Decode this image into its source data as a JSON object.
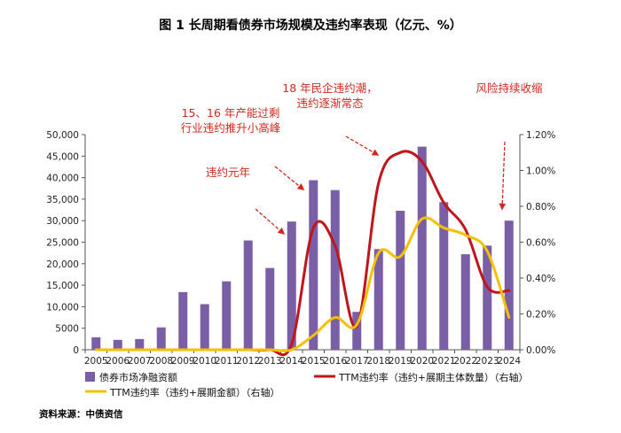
{
  "title": "图 1  长周期看债券市场规模及违约率表现（亿元、%）",
  "source": "资料来源：中债资信",
  "chart_data": {
    "type": "bar+line",
    "categories": [
      "2005",
      "2006",
      "2007",
      "2008",
      "2009",
      "2010",
      "2011",
      "2012",
      "2013",
      "2014",
      "2015",
      "2016",
      "2017",
      "2018",
      "2019",
      "2020",
      "2021",
      "2022",
      "2023",
      "2024"
    ],
    "left_axis": {
      "min": 0,
      "max": 50000,
      "step": 5000,
      "tick_labels": [
        "0",
        "5000",
        "10,000",
        "15,000",
        "20,000",
        "25,000",
        "30,000",
        "35,000",
        "40,000",
        "45,000",
        "50,000"
      ]
    },
    "right_axis": {
      "min": 0,
      "max": 1.2,
      "step": 0.2,
      "tick_labels": [
        "0.00%",
        "0.20%",
        "0.40%",
        "0.60%",
        "0.80%",
        "1.00%",
        "1.20%"
      ]
    },
    "series": [
      {
        "name": "债券市场净融资额",
        "type": "bar",
        "axis": "left",
        "color": "#7b5fa6",
        "values": [
          2900,
          2300,
          2500,
          5200,
          13400,
          10600,
          15900,
          25400,
          19000,
          29800,
          39400,
          37100,
          8800,
          23400,
          32300,
          47200,
          34300,
          22200,
          24200,
          30000
        ]
      },
      {
        "name": "TTM违约率（违约+展期主体数量）（右轴）",
        "type": "line",
        "axis": "right",
        "color": "#c0161b",
        "values": [
          0,
          0,
          0,
          0,
          0,
          0,
          0,
          0,
          0,
          0.03,
          0.68,
          0.58,
          0.13,
          0.93,
          1.1,
          1.05,
          0.82,
          0.67,
          0.35,
          0.33
        ]
      },
      {
        "name": "TTM违约率（违约+展期金额）（右轴）",
        "type": "line",
        "axis": "right",
        "color": "#f5c000",
        "values": [
          0,
          0,
          0,
          0,
          0,
          0,
          0,
          0,
          0,
          0,
          0.08,
          0.18,
          0.14,
          0.54,
          0.52,
          0.73,
          0.68,
          0.64,
          0.55,
          0.18
        ]
      }
    ],
    "annotations": [
      {
        "text": "违约元年",
        "lines": [
          "违约元年"
        ]
      },
      {
        "text": "15、16年产能过剩行业违约推升小高峰",
        "lines": [
          "15、16 年产能过剩",
          "行业违约推升小高峰"
        ]
      },
      {
        "text": "18年民企违约潮，违约逐渐常态",
        "lines": [
          "18 年民企违约潮，",
          "违约逐渐常态"
        ]
      },
      {
        "text": "风险持续收缩",
        "lines": [
          "风险持续收缩"
        ]
      }
    ],
    "legend": {
      "bar": "债券市场净融资额",
      "red": "TTM违约率（违约+展期主体数量）（右轴）",
      "yellow": "TTM违约率（违约+展期金额）（右轴）"
    }
  }
}
